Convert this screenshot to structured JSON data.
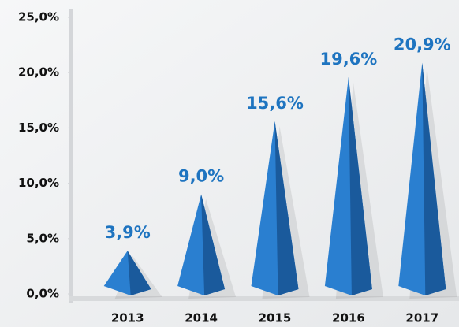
{
  "chart_data": {
    "type": "pyramid",
    "categories": [
      "2013",
      "2014",
      "2015",
      "2016",
      "2017"
    ],
    "values": [
      3.9,
      9.0,
      15.6,
      19.6,
      20.9
    ],
    "value_labels": [
      "3,9%",
      "9,0%",
      "15,6%",
      "19,6%",
      "20,9%"
    ],
    "color": "#2a7fd0",
    "ylim": [
      0,
      25
    ],
    "yticks": [
      {
        "value": 0,
        "label": "0,0%"
      },
      {
        "value": 5,
        "label": "5,0%"
      },
      {
        "value": 10,
        "label": "10,0%"
      },
      {
        "value": 15,
        "label": "15,0%"
      },
      {
        "value": 20,
        "label": "20,0%"
      },
      {
        "value": 25,
        "label": "25,0%"
      }
    ]
  }
}
